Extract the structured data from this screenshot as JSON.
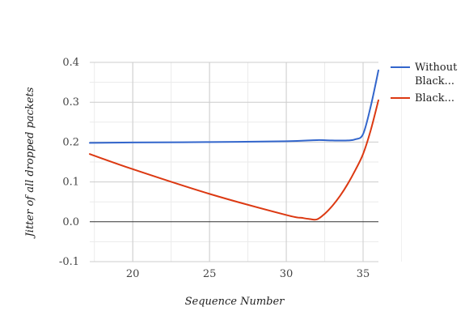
{
  "chart_data": {
    "type": "line",
    "title": "",
    "xlabel": "Sequence Number",
    "ylabel": "Jitter of all dropped packets",
    "xlim": [
      17.2,
      36
    ],
    "ylim": [
      -0.1,
      0.4
    ],
    "x_ticks": [
      "20",
      "25",
      "30",
      "35"
    ],
    "y_ticks": [
      "-0.1",
      "0.0",
      "0.1",
      "0.2",
      "0.3",
      "0.4"
    ],
    "grid": true,
    "legend_position": "right",
    "series": [
      {
        "name": "Without Black...",
        "legend_lines": [
          "Without",
          "Black..."
        ],
        "color": "#3366cc",
        "x": [
          17.2,
          20,
          25,
          30,
          32,
          33,
          34,
          34.5,
          35,
          35.5,
          36
        ],
        "y": [
          0.198,
          0.199,
          0.2,
          0.202,
          0.205,
          0.204,
          0.204,
          0.207,
          0.22,
          0.29,
          0.38
        ]
      },
      {
        "name": "Black...",
        "legend_lines": [
          "Black..."
        ],
        "color": "#dc3912",
        "x": [
          17.2,
          20,
          25,
          30,
          31,
          31.5,
          32,
          32.5,
          33,
          33.5,
          34,
          34.5,
          35,
          35.5,
          36
        ],
        "y": [
          0.17,
          0.132,
          0.07,
          0.017,
          0.01,
          0.007,
          0.006,
          0.02,
          0.04,
          0.065,
          0.095,
          0.13,
          0.17,
          0.23,
          0.305
        ]
      }
    ]
  }
}
